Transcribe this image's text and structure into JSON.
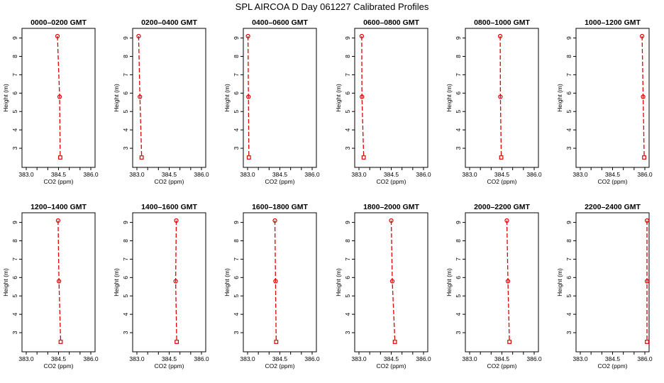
{
  "chart_data": {
    "type": "line",
    "title": "SPL AIRCOA D  Day 061227  Calibrated Profiles",
    "xlabel": "CO2 (ppm)",
    "ylabel": "Height (m)",
    "xlim": [
      383.0,
      386.0
    ],
    "ylim": [
      2.5,
      9.1
    ],
    "xticks": [
      383.0,
      383.5,
      384.0,
      384.5,
      385.0,
      385.5,
      386.0
    ],
    "xtick_labels": [
      "383.0",
      "384.5",
      "386.0"
    ],
    "yticks": [
      3,
      4,
      5,
      6,
      7,
      8,
      9
    ],
    "heights": [
      9.1,
      5.8,
      2.5
    ],
    "markers": [
      "circle",
      "circle",
      "square"
    ],
    "panels": [
      {
        "title": "0000–0200 GMT",
        "values": [
          384.45,
          384.55,
          384.58
        ]
      },
      {
        "title": "0200–0400 GMT",
        "values": [
          383.08,
          383.14,
          383.22
        ]
      },
      {
        "title": "0400–0600 GMT",
        "values": [
          383.02,
          383.04,
          383.06
        ]
      },
      {
        "title": "0600–0800 GMT",
        "values": [
          383.13,
          383.14,
          383.22
        ]
      },
      {
        "title": "0800–1000 GMT",
        "values": [
          384.42,
          384.43,
          384.47
        ]
      },
      {
        "title": "1000–1200 GMT",
        "values": [
          385.87,
          385.92,
          385.97
        ]
      },
      {
        "title": "1200–1400 GMT",
        "values": [
          384.48,
          384.52,
          384.6
        ]
      },
      {
        "title": "1400–1600 GMT",
        "values": [
          384.83,
          384.8,
          384.85
        ]
      },
      {
        "title": "1600–1800 GMT",
        "values": [
          384.27,
          384.3,
          384.33
        ]
      },
      {
        "title": "1800–2000 GMT",
        "values": [
          384.5,
          384.55,
          384.67
        ]
      },
      {
        "title": "2000–2200 GMT",
        "values": [
          384.73,
          384.78,
          384.85
        ]
      },
      {
        "title": "2200–2400 GMT",
        "values": [
          386.1,
          386.1,
          386.1
        ]
      }
    ],
    "colors": {
      "line": "#dd0000"
    }
  }
}
